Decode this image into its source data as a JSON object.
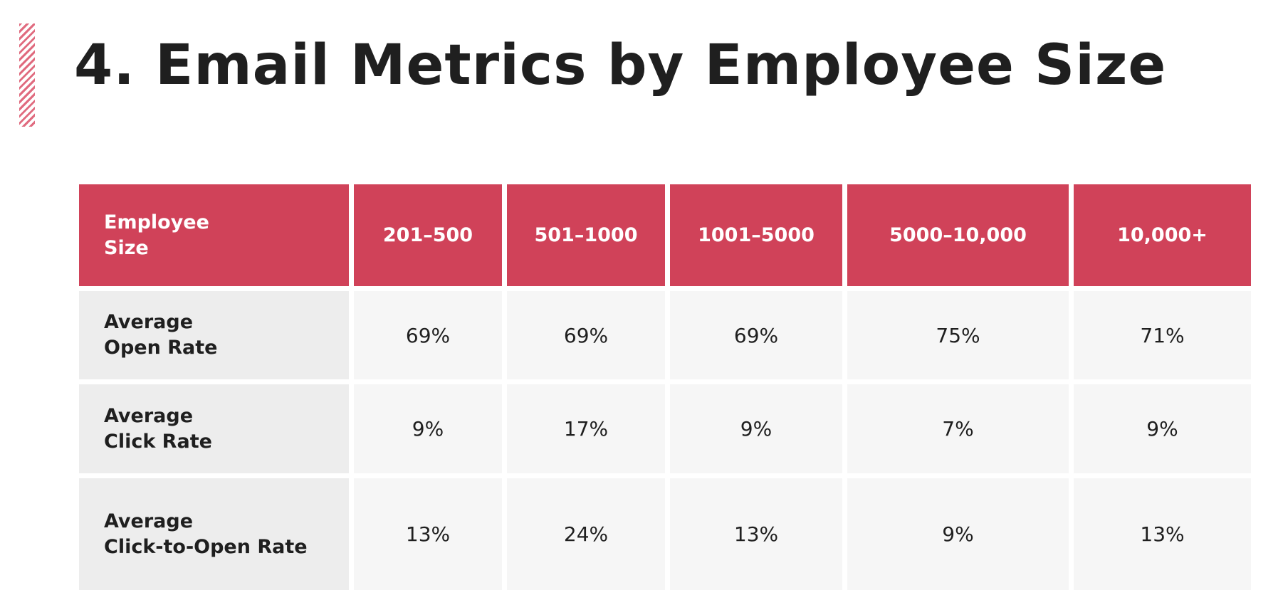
{
  "page": {
    "title": "4. Email Metrics by Employee Size",
    "accent_color": "#d04259"
  },
  "table": {
    "header": {
      "first_col_lines": [
        "Employee",
        "Size"
      ],
      "columns": [
        "201–500",
        "501–1000",
        "1001–5000",
        "5000–10,000",
        "10,000+"
      ]
    },
    "rows": [
      {
        "label_lines": [
          "Average",
          "Open Rate"
        ],
        "values": [
          "69%",
          "69%",
          "69%",
          "75%",
          "71%"
        ]
      },
      {
        "label_lines": [
          "Average",
          "Click Rate"
        ],
        "values": [
          "9%",
          "17%",
          "9%",
          "7%",
          "9%"
        ]
      },
      {
        "label_lines": [
          "Average",
          "Click-to-Open Rate"
        ],
        "values": [
          "13%",
          "24%",
          "13%",
          "9%",
          "13%"
        ]
      }
    ]
  }
}
